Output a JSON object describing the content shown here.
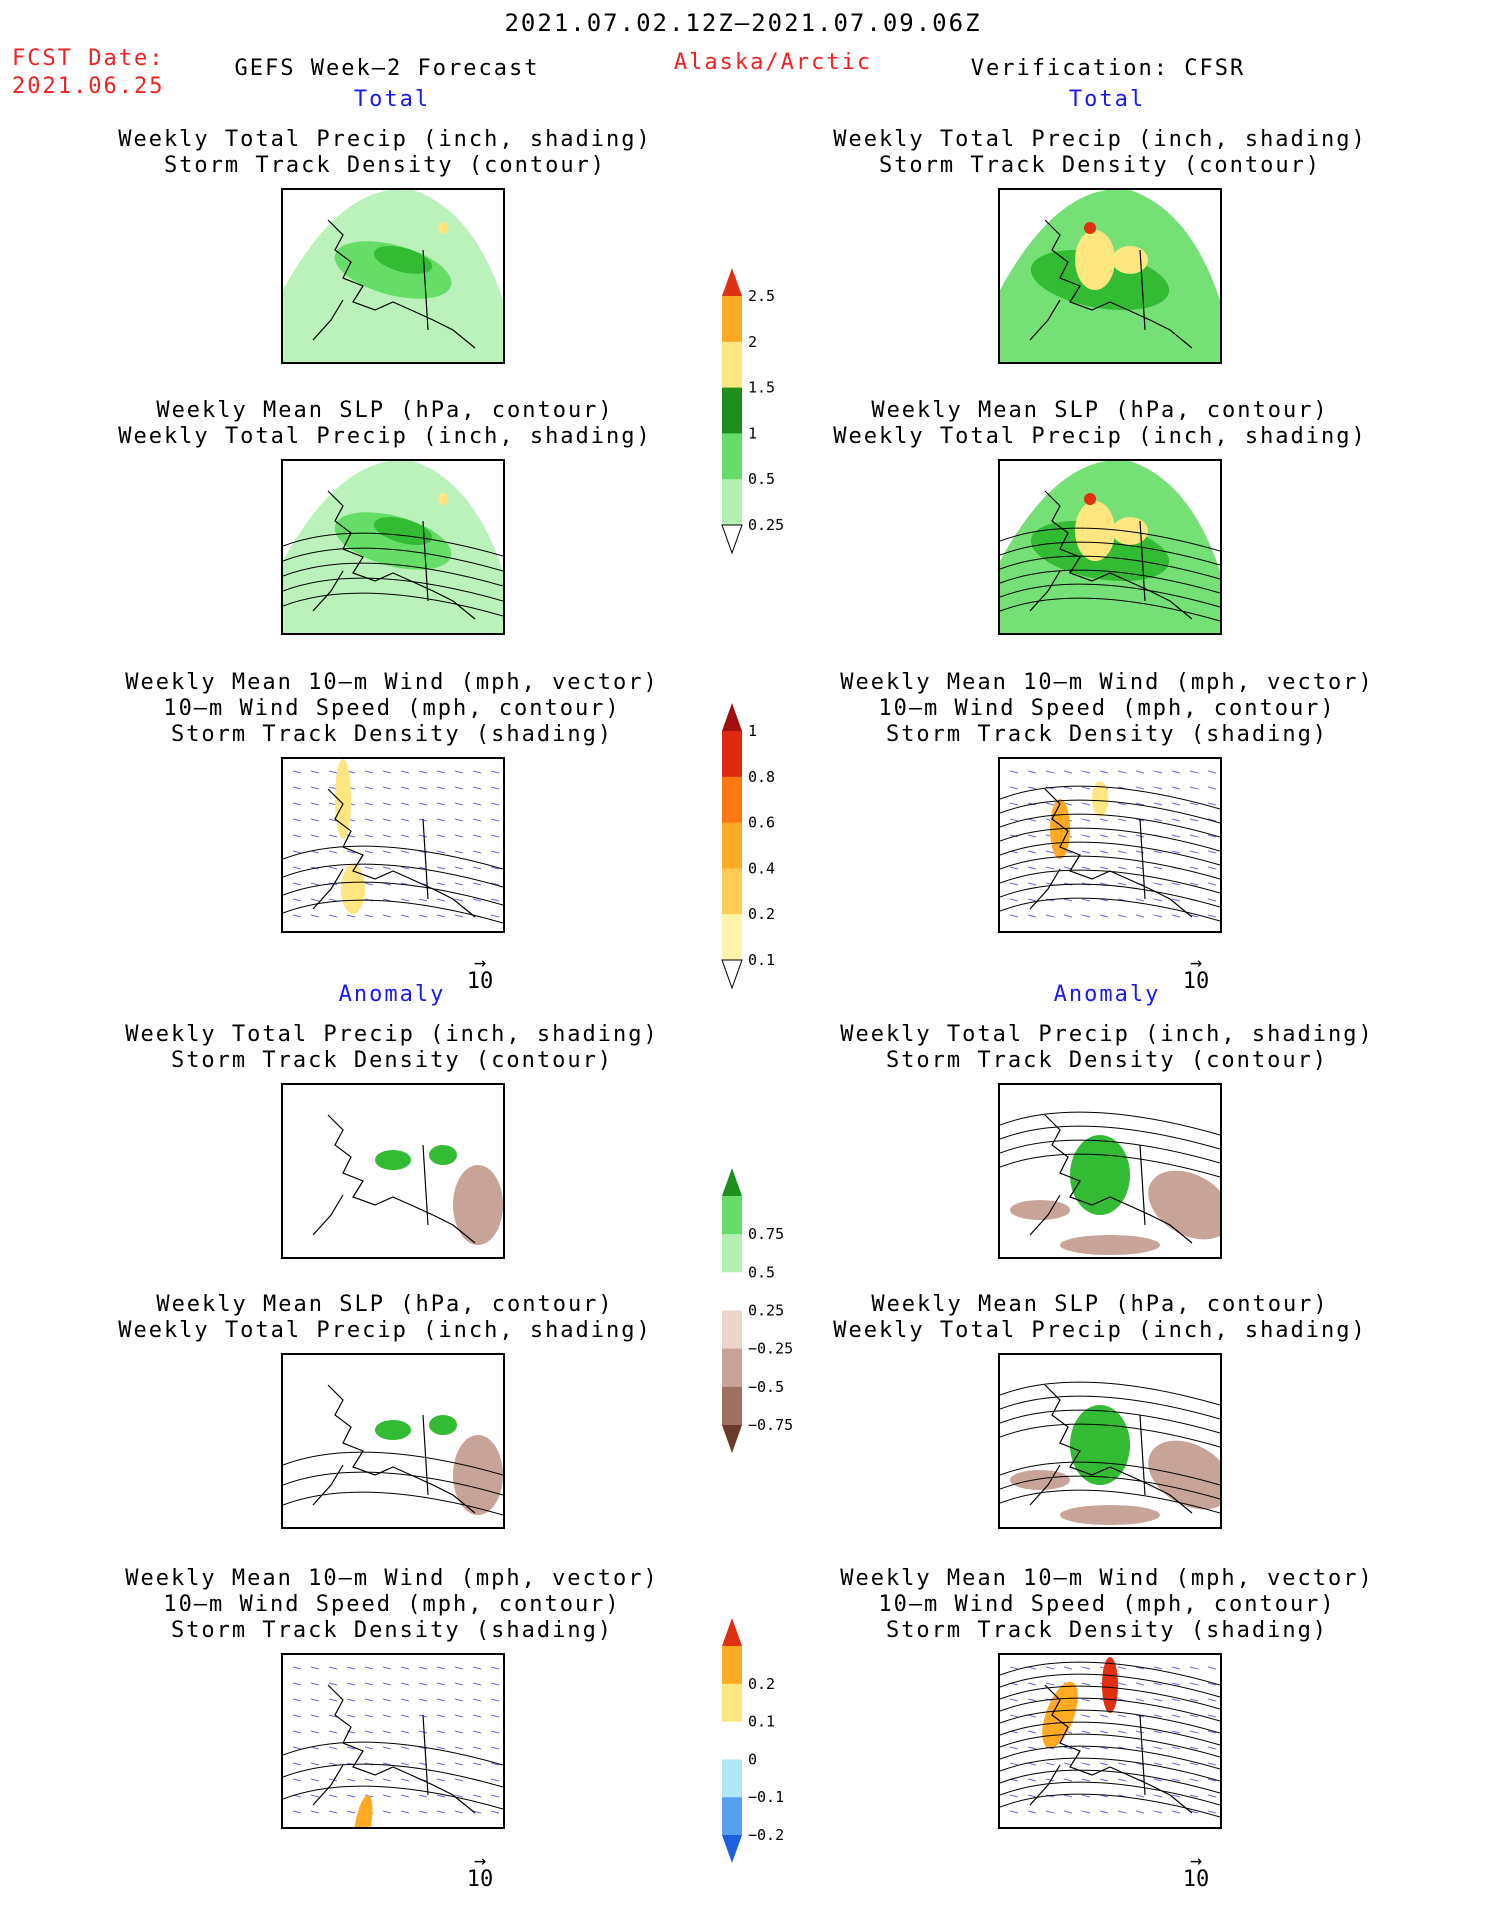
{
  "header": {
    "date_range": "2021.07.02.12Z–2021.07.09.06Z",
    "fcst_label": "FCST Date:",
    "fcst_date": "2021.06.25",
    "left_title": "GEFS Week–2 Forecast",
    "region": "Alaska/Arctic",
    "right_title": "Verification: CFSR"
  },
  "sections": {
    "total": "Total",
    "anomaly": "Anomaly"
  },
  "panel_titles": {
    "precip_track": [
      "Weekly Total Precip (inch, shading)",
      "Storm Track Density (contour)"
    ],
    "slp_precip": [
      "Weekly Mean SLP (hPa, contour)",
      "Weekly Total Precip (inch, shading)"
    ],
    "wind_track": [
      "Weekly Mean 10–m Wind (mph, vector)",
      "10–m Wind Speed (mph, contour)",
      "Storm Track Density (shading)"
    ]
  },
  "vector_ref": {
    "arrow": "→",
    "label": "10"
  },
  "colors": {
    "precip_025": "#b4f0b4",
    "precip_05": "#66dd66",
    "precip_1": "#33bb33",
    "precip_15": "#1d8f1d",
    "precip_2": "#ffe680",
    "precip_25": "#ffaa22",
    "precip_top": "#e03010",
    "anom_pos": "#33bb33",
    "anom_neg": "#c8a498",
    "vector": "#6a6ae0",
    "contour": "#000000"
  },
  "chart_data": [
    {
      "id": "precip-total-colorbar",
      "type": "colorbar",
      "tick_labels": [
        "0.25",
        "0.5",
        "1",
        "1.5",
        "2",
        "2.5"
      ],
      "colors": [
        "#ffffff",
        "#b4f0b4",
        "#66dd66",
        "#1d8f1d",
        "#ffe680",
        "#ffaa22",
        "#e03010"
      ]
    },
    {
      "id": "storm-track-total-colorbar",
      "type": "colorbar",
      "tick_labels": [
        "0.1",
        "0.2",
        "0.4",
        "0.6",
        "0.8",
        "1"
      ],
      "colors": [
        "#ffffff",
        "#fff4aa",
        "#ffcc55",
        "#ffaa22",
        "#ff7711",
        "#e02a10",
        "#a01010"
      ]
    },
    {
      "id": "precip-anomaly-colorbar",
      "type": "colorbar",
      "tick_labels": [
        "−0.75",
        "−0.5",
        "−0.25",
        "0.25",
        "0.5",
        "0.75"
      ],
      "colors": [
        "#6a3a2a",
        "#a07060",
        "#c8a498",
        "#ead4cc",
        "#ffffff",
        "#b4f0b4",
        "#66dd66",
        "#1d8f1d"
      ]
    },
    {
      "id": "storm-track-anomaly-colorbar",
      "type": "colorbar",
      "tick_labels": [
        "−0.2",
        "−0.1",
        "0",
        "0.1",
        "0.2"
      ],
      "colors": [
        "#1a60e0",
        "#55a0f0",
        "#b0e8f8",
        "#ffffff",
        "#ffe680",
        "#ffaa22",
        "#e03010"
      ]
    }
  ]
}
